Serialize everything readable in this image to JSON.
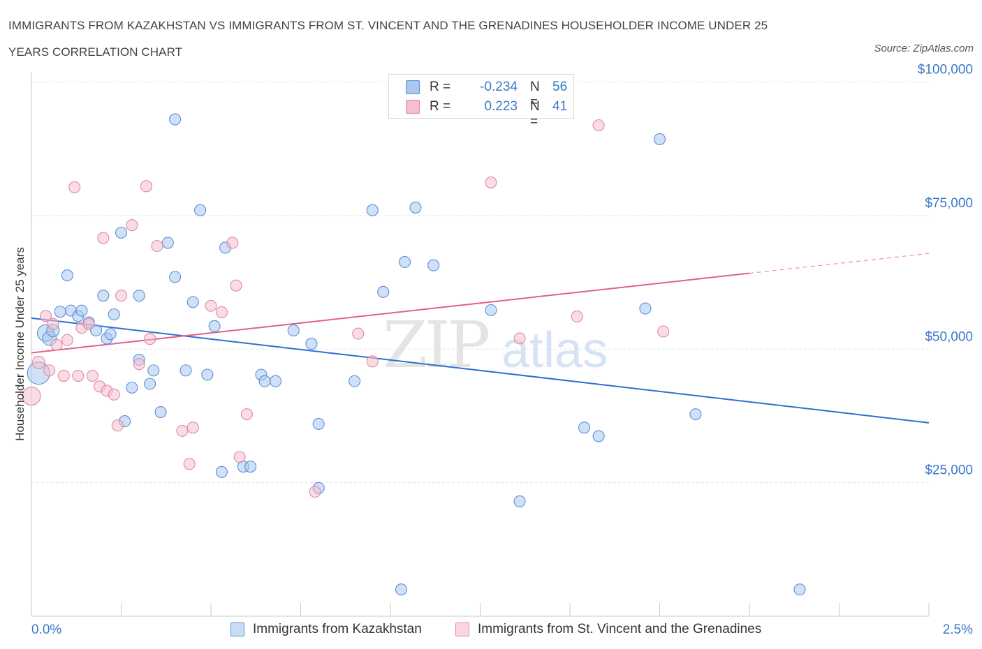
{
  "header": {
    "title_line1": "IMMIGRANTS FROM KAZAKHSTAN VS IMMIGRANTS FROM ST. VINCENT AND THE GRENADINES HOUSEHOLDER INCOME UNDER 25",
    "title_line2": "YEARS CORRELATION CHART",
    "source": "Source: ZipAtlas.com"
  },
  "colors": {
    "blue_fill": "#a9c8f0",
    "blue_stroke": "#5b8fd6",
    "blue_line": "#2f6fd0",
    "pink_fill": "#f5bfd0",
    "pink_stroke": "#e088a8",
    "pink_line": "#e0608e",
    "axis_label": "#3a78c9",
    "grid": "#e3e3e3"
  },
  "legend": {
    "r_label": "R =",
    "n_label": "N =",
    "series1": {
      "r": "-0.234",
      "n": "56"
    },
    "series2": {
      "r": "0.223",
      "n": "41"
    }
  },
  "watermark": {
    "zip": "ZIP",
    "atlas": "atlas"
  },
  "chart_data": {
    "type": "scatter",
    "title": "IMMIGRANTS FROM KAZAKHSTAN VS IMMIGRANTS FROM ST. VINCENT AND THE GRENADINES HOUSEHOLDER INCOME UNDER 25 YEARS CORRELATION CHART",
    "xlabel": "",
    "ylabel": "Householder Income Under 25 years",
    "xlim": [
      0,
      2.5
    ],
    "ylim": [
      0,
      100000
    ],
    "x_tick_labels": [
      "0.0%",
      "2.5%"
    ],
    "y_ticks": [
      25000,
      50000,
      75000,
      100000
    ],
    "y_tick_labels": [
      "$25,000",
      "$50,000",
      "$75,000",
      "$100,000"
    ],
    "legend_position": "top-center",
    "series": [
      {
        "name": "Immigrants from Kazakhstan",
        "color": "blue",
        "r": -0.234,
        "n": 56,
        "trend": {
          "x0": 0.0,
          "y0": 55800,
          "x1": 2.5,
          "y1": 36200
        },
        "points": [
          [
            0.02,
            45500,
            16
          ],
          [
            0.04,
            53000,
            12
          ],
          [
            0.05,
            52000,
            10
          ],
          [
            0.06,
            53500,
            9
          ],
          [
            0.08,
            57000,
            8
          ],
          [
            0.1,
            63800,
            8
          ],
          [
            0.11,
            57200,
            8
          ],
          [
            0.13,
            56200,
            8
          ],
          [
            0.14,
            57200,
            8
          ],
          [
            0.16,
            55000,
            8
          ],
          [
            0.18,
            53500,
            8
          ],
          [
            0.2,
            60000,
            8
          ],
          [
            0.21,
            52000,
            8
          ],
          [
            0.22,
            52800,
            8
          ],
          [
            0.23,
            56500,
            8
          ],
          [
            0.25,
            71800,
            8
          ],
          [
            0.26,
            36500,
            8
          ],
          [
            0.28,
            42800,
            8
          ],
          [
            0.3,
            60000,
            8
          ],
          [
            0.3,
            48000,
            8
          ],
          [
            0.33,
            43500,
            8
          ],
          [
            0.34,
            46000,
            8
          ],
          [
            0.36,
            38200,
            8
          ],
          [
            0.38,
            69900,
            8
          ],
          [
            0.4,
            63500,
            8
          ],
          [
            0.4,
            93000,
            8
          ],
          [
            0.43,
            46000,
            8
          ],
          [
            0.45,
            58800,
            8
          ],
          [
            0.47,
            76000,
            8
          ],
          [
            0.49,
            45200,
            8
          ],
          [
            0.51,
            54300,
            8
          ],
          [
            0.53,
            27000,
            8
          ],
          [
            0.54,
            69000,
            8
          ],
          [
            0.59,
            28000,
            8
          ],
          [
            0.61,
            28000,
            8
          ],
          [
            0.64,
            45200,
            8
          ],
          [
            0.65,
            44000,
            8
          ],
          [
            0.68,
            44000,
            8
          ],
          [
            0.73,
            53500,
            8
          ],
          [
            0.78,
            51000,
            8
          ],
          [
            0.8,
            24000,
            8
          ],
          [
            0.8,
            36000,
            8
          ],
          [
            0.9,
            44000,
            8
          ],
          [
            0.95,
            76000,
            8
          ],
          [
            0.98,
            60700,
            8
          ],
          [
            1.03,
            5000,
            8
          ],
          [
            1.04,
            66300,
            8
          ],
          [
            1.07,
            76500,
            8
          ],
          [
            1.12,
            65700,
            8
          ],
          [
            1.28,
            57300,
            8
          ],
          [
            1.36,
            21500,
            8
          ],
          [
            1.54,
            35300,
            8
          ],
          [
            1.58,
            33700,
            8
          ],
          [
            1.71,
            57600,
            8
          ],
          [
            1.75,
            89300,
            8
          ],
          [
            1.85,
            37800,
            8
          ],
          [
            2.14,
            5000,
            8
          ]
        ]
      },
      {
        "name": "Immigrants from St. Vincent and the Grenadines",
        "color": "pink",
        "r": 0.223,
        "n": 41,
        "trend": {
          "x0": 0.0,
          "y0": 49300,
          "x1": 2.0,
          "y1": 64200,
          "dash_to": {
            "x": 2.5,
            "y": 67900
          }
        },
        "points": [
          [
            0.0,
            41200,
            13
          ],
          [
            0.02,
            47500,
            9
          ],
          [
            0.04,
            56200,
            8
          ],
          [
            0.05,
            46000,
            8
          ],
          [
            0.06,
            54700,
            8
          ],
          [
            0.07,
            50800,
            8
          ],
          [
            0.09,
            45000,
            8
          ],
          [
            0.1,
            51700,
            8
          ],
          [
            0.12,
            80300,
            8
          ],
          [
            0.13,
            45000,
            8
          ],
          [
            0.14,
            54000,
            8
          ],
          [
            0.16,
            54700,
            8
          ],
          [
            0.17,
            45000,
            8
          ],
          [
            0.19,
            43000,
            8
          ],
          [
            0.2,
            70800,
            8
          ],
          [
            0.21,
            42200,
            8
          ],
          [
            0.23,
            41500,
            8
          ],
          [
            0.24,
            35700,
            8
          ],
          [
            0.25,
            60000,
            8
          ],
          [
            0.28,
            73200,
            8
          ],
          [
            0.3,
            47200,
            8
          ],
          [
            0.32,
            80500,
            8
          ],
          [
            0.33,
            51900,
            8
          ],
          [
            0.35,
            69300,
            8
          ],
          [
            0.42,
            34700,
            8
          ],
          [
            0.44,
            28500,
            8
          ],
          [
            0.45,
            35300,
            8
          ],
          [
            0.5,
            58100,
            8
          ],
          [
            0.53,
            56900,
            8
          ],
          [
            0.56,
            69900,
            8
          ],
          [
            0.57,
            61900,
            8
          ],
          [
            0.58,
            29800,
            8
          ],
          [
            0.6,
            37800,
            8
          ],
          [
            0.79,
            23300,
            8
          ],
          [
            0.91,
            52900,
            8
          ],
          [
            0.95,
            47700,
            8
          ],
          [
            1.28,
            81200,
            8
          ],
          [
            1.36,
            52000,
            8
          ],
          [
            1.52,
            56100,
            8
          ],
          [
            1.58,
            91900,
            8
          ],
          [
            1.76,
            53300,
            8
          ]
        ]
      }
    ]
  },
  "bottom_legend": {
    "series1": "Immigrants from Kazakhstan",
    "series2": "Immigrants from St. Vincent and the Grenadines"
  }
}
